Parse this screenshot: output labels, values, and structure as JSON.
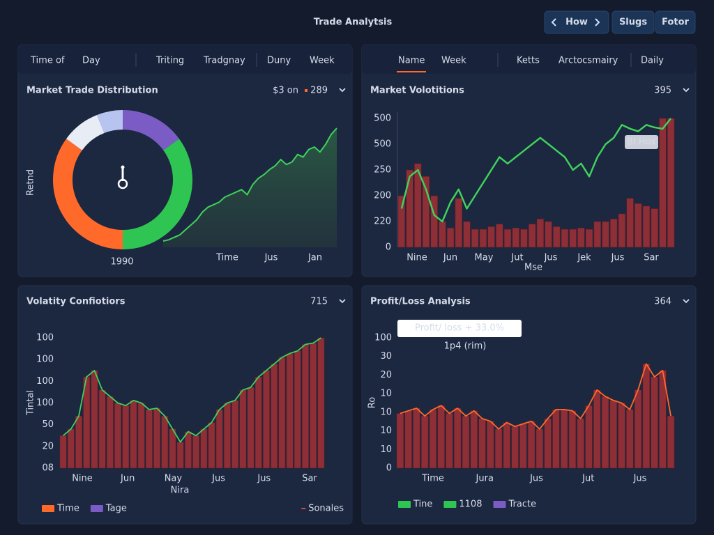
{
  "header": {
    "title": "Trade Analytsis",
    "buttons": [
      "How",
      "Slugs",
      "Fotor"
    ]
  },
  "panels": [
    {
      "tabs": [
        "Time of",
        "Day",
        "Triting",
        "Tradgnay",
        "Duny",
        "Week"
      ],
      "title": "Market Trade Distribution",
      "badges": [
        "$3 on",
        "289"
      ],
      "y_title": "Retnd",
      "x_labels": [
        "Time",
        "Jus",
        "Jan"
      ],
      "donut": {
        "label": "1990",
        "values": [
          15,
          35,
          35,
          9,
          6
        ],
        "colors": [
          "#7b5cc4",
          "#2fc553",
          "#ff6a2b",
          "#e8ecf4",
          "#b8c4f0"
        ]
      },
      "chart": {
        "type": "area",
        "ylim": [
          0,
          100
        ],
        "color": "#3fd25c",
        "values": [
          5,
          6,
          8,
          10,
          14,
          18,
          22,
          28,
          32,
          34,
          36,
          40,
          42,
          44,
          46,
          42,
          50,
          55,
          58,
          62,
          65,
          70,
          66,
          68,
          74,
          72,
          78,
          80,
          76,
          82,
          90,
          95
        ]
      }
    },
    {
      "tabs": [
        "Name",
        "Week",
        "Ketts",
        "Arctocsmairy",
        "Daily"
      ],
      "title": "Market Volotitions",
      "badges": [
        "395"
      ],
      "y_labels": [
        "500",
        "500",
        "250",
        "200",
        "220",
        "0"
      ],
      "x_labels": [
        "Nine",
        "Jun",
        "May",
        "Jut",
        "Jus",
        "Jek",
        "Jus",
        "Sar"
      ],
      "x_sub": "Mse",
      "tooltip": "Bl Hox",
      "chart": {
        "type": "bar",
        "ylim": [
          0,
          100
        ],
        "color": "#8e2f37",
        "values": [
          40,
          60,
          65,
          55,
          40,
          20,
          15,
          38,
          20,
          14,
          14,
          16,
          18,
          14,
          15,
          14,
          18,
          22,
          20,
          16,
          14,
          14,
          15,
          14,
          20,
          20,
          22,
          26,
          38,
          34,
          32,
          30,
          100,
          100
        ],
        "line": {
          "color": "#3fd25c",
          "values": [
            30,
            55,
            60,
            45,
            25,
            20,
            35,
            45,
            30,
            40,
            50,
            60,
            70,
            65,
            70,
            75,
            80,
            85,
            80,
            75,
            70,
            60,
            65,
            55,
            70,
            80,
            85,
            95,
            92,
            90,
            95,
            93,
            92,
            100
          ]
        }
      }
    },
    {
      "title": "Volatity Confiotiors",
      "badges": [
        "715"
      ],
      "y_title": "Tintal",
      "y_labels": [
        "100",
        "100",
        "100",
        "100",
        "50",
        "20",
        "08"
      ],
      "x_labels": [
        "Nine",
        "Jun",
        "Nay",
        "Jus",
        "Jus",
        "Sar"
      ],
      "x_sub": "Nira",
      "legend": [
        {
          "name": "Time",
          "color": "#ff6a2b"
        },
        {
          "name": "Tage",
          "color": "#7b5cc4"
        }
      ],
      "legend_right": {
        "name": "Sonales",
        "color": "#e0443c"
      },
      "chart": {
        "type": "bar",
        "ylim": [
          0,
          100
        ],
        "color": "#8e2f37",
        "values": [
          25,
          30,
          40,
          70,
          75,
          60,
          55,
          50,
          48,
          52,
          50,
          45,
          46,
          40,
          30,
          20,
          28,
          25,
          30,
          35,
          45,
          50,
          52,
          60,
          62,
          70,
          75,
          80,
          85,
          88,
          90,
          95,
          96,
          100
        ],
        "line": {
          "color": "#3fd25c"
        }
      }
    },
    {
      "title": "Profit/Loss Analysis",
      "badges": [
        "364"
      ],
      "y_title": "Ro",
      "y_labels": [
        "100",
        "30",
        "20",
        "10",
        "10",
        "10",
        "10",
        "0"
      ],
      "x_labels": [
        "Time",
        "Jura",
        "Jus",
        "Jut",
        "Jus"
      ],
      "tooltip": "Profit/ loss  + 33.0%",
      "tooltip_sub": "1p4 (rim)",
      "legend": [
        {
          "name": "Tine",
          "color": "#2fc553"
        },
        {
          "name": "1108",
          "color": "#2fc553"
        },
        {
          "name": "Tracte",
          "color": "#7b5cc4"
        }
      ],
      "chart": {
        "type": "bar",
        "ylim": [
          0,
          100
        ],
        "color": "#8e2f37",
        "values": [
          42,
          44,
          46,
          40,
          45,
          48,
          42,
          46,
          40,
          44,
          38,
          36,
          30,
          35,
          32,
          34,
          36,
          30,
          38,
          45,
          45,
          44,
          38,
          48,
          60,
          55,
          52,
          50,
          45,
          60,
          80,
          70,
          75,
          40
        ],
        "line": {
          "color": "#ff6a2b"
        }
      }
    }
  ]
}
